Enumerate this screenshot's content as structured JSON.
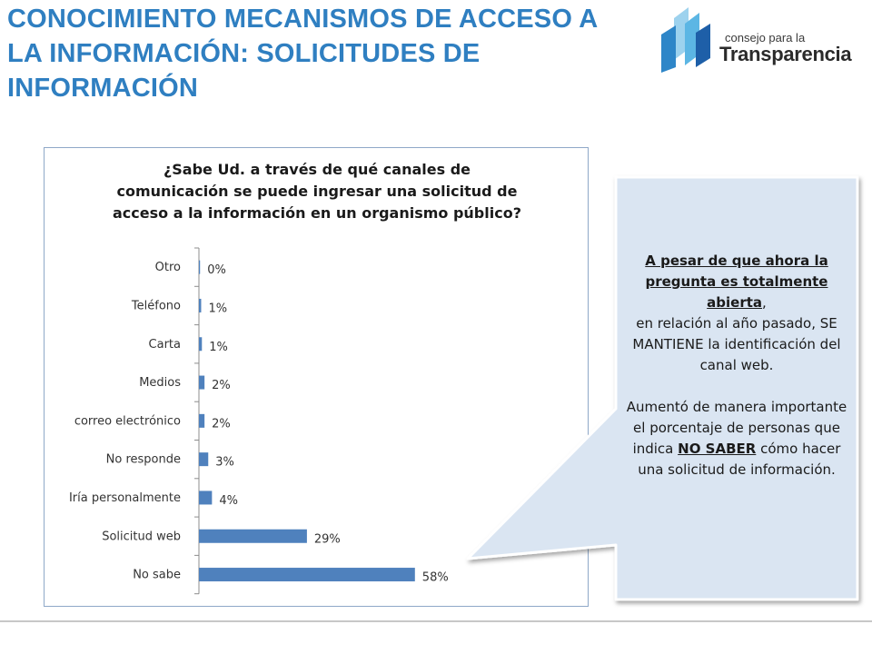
{
  "title_lines": [
    "CONOCIMIENTO MECANISMOS DE ACCESO A",
    "LA INFORMACIÓN: SOLICITUDES DE",
    "INFORMACIÓN"
  ],
  "logo": {
    "line1": "consejo para la",
    "line2": "Transparencia",
    "colors": [
      "#1e5fa8",
      "#2e86c8",
      "#5cb6e4",
      "#9dd2ee"
    ]
  },
  "chart_data": {
    "type": "bar",
    "orientation": "horizontal",
    "title_lines": [
      "¿Sabe Ud. a través de qué canales de",
      "comunicación se puede ingresar una solicitud de",
      "acceso a la información en un organismo público?"
    ],
    "categories": [
      "Otro",
      "Teléfono",
      "Carta",
      "Medios",
      "correo electrónico",
      "No responde",
      "Iría personalmente",
      "Solicitud web",
      "No sabe"
    ],
    "values": [
      0.3,
      0.6,
      0.8,
      1.5,
      1.5,
      2.5,
      3.5,
      29,
      58
    ],
    "value_labels": [
      "0%",
      "1%",
      "1%",
      "2%",
      "2%",
      "3%",
      "4%",
      "29%",
      "58%"
    ],
    "bar_color": "#4f81bd",
    "xlim": [
      0,
      100
    ],
    "grid": false
  },
  "callout": {
    "p1_underlined": "A pesar de que ahora la pregunta es totalmente abierta",
    "p1_comma": ",",
    "p1_rest": "en relación al año pasado, SE MANTIENE la identificación del canal web.",
    "p2_before": "Aumentó de manera importante el porcentaje de personas que indica",
    "p2_emphasis": "NO SABER",
    "p2_after": "cómo hacer una solicitud de información.",
    "fill_color": "#dae5f2",
    "border_color": "#ffffff"
  }
}
